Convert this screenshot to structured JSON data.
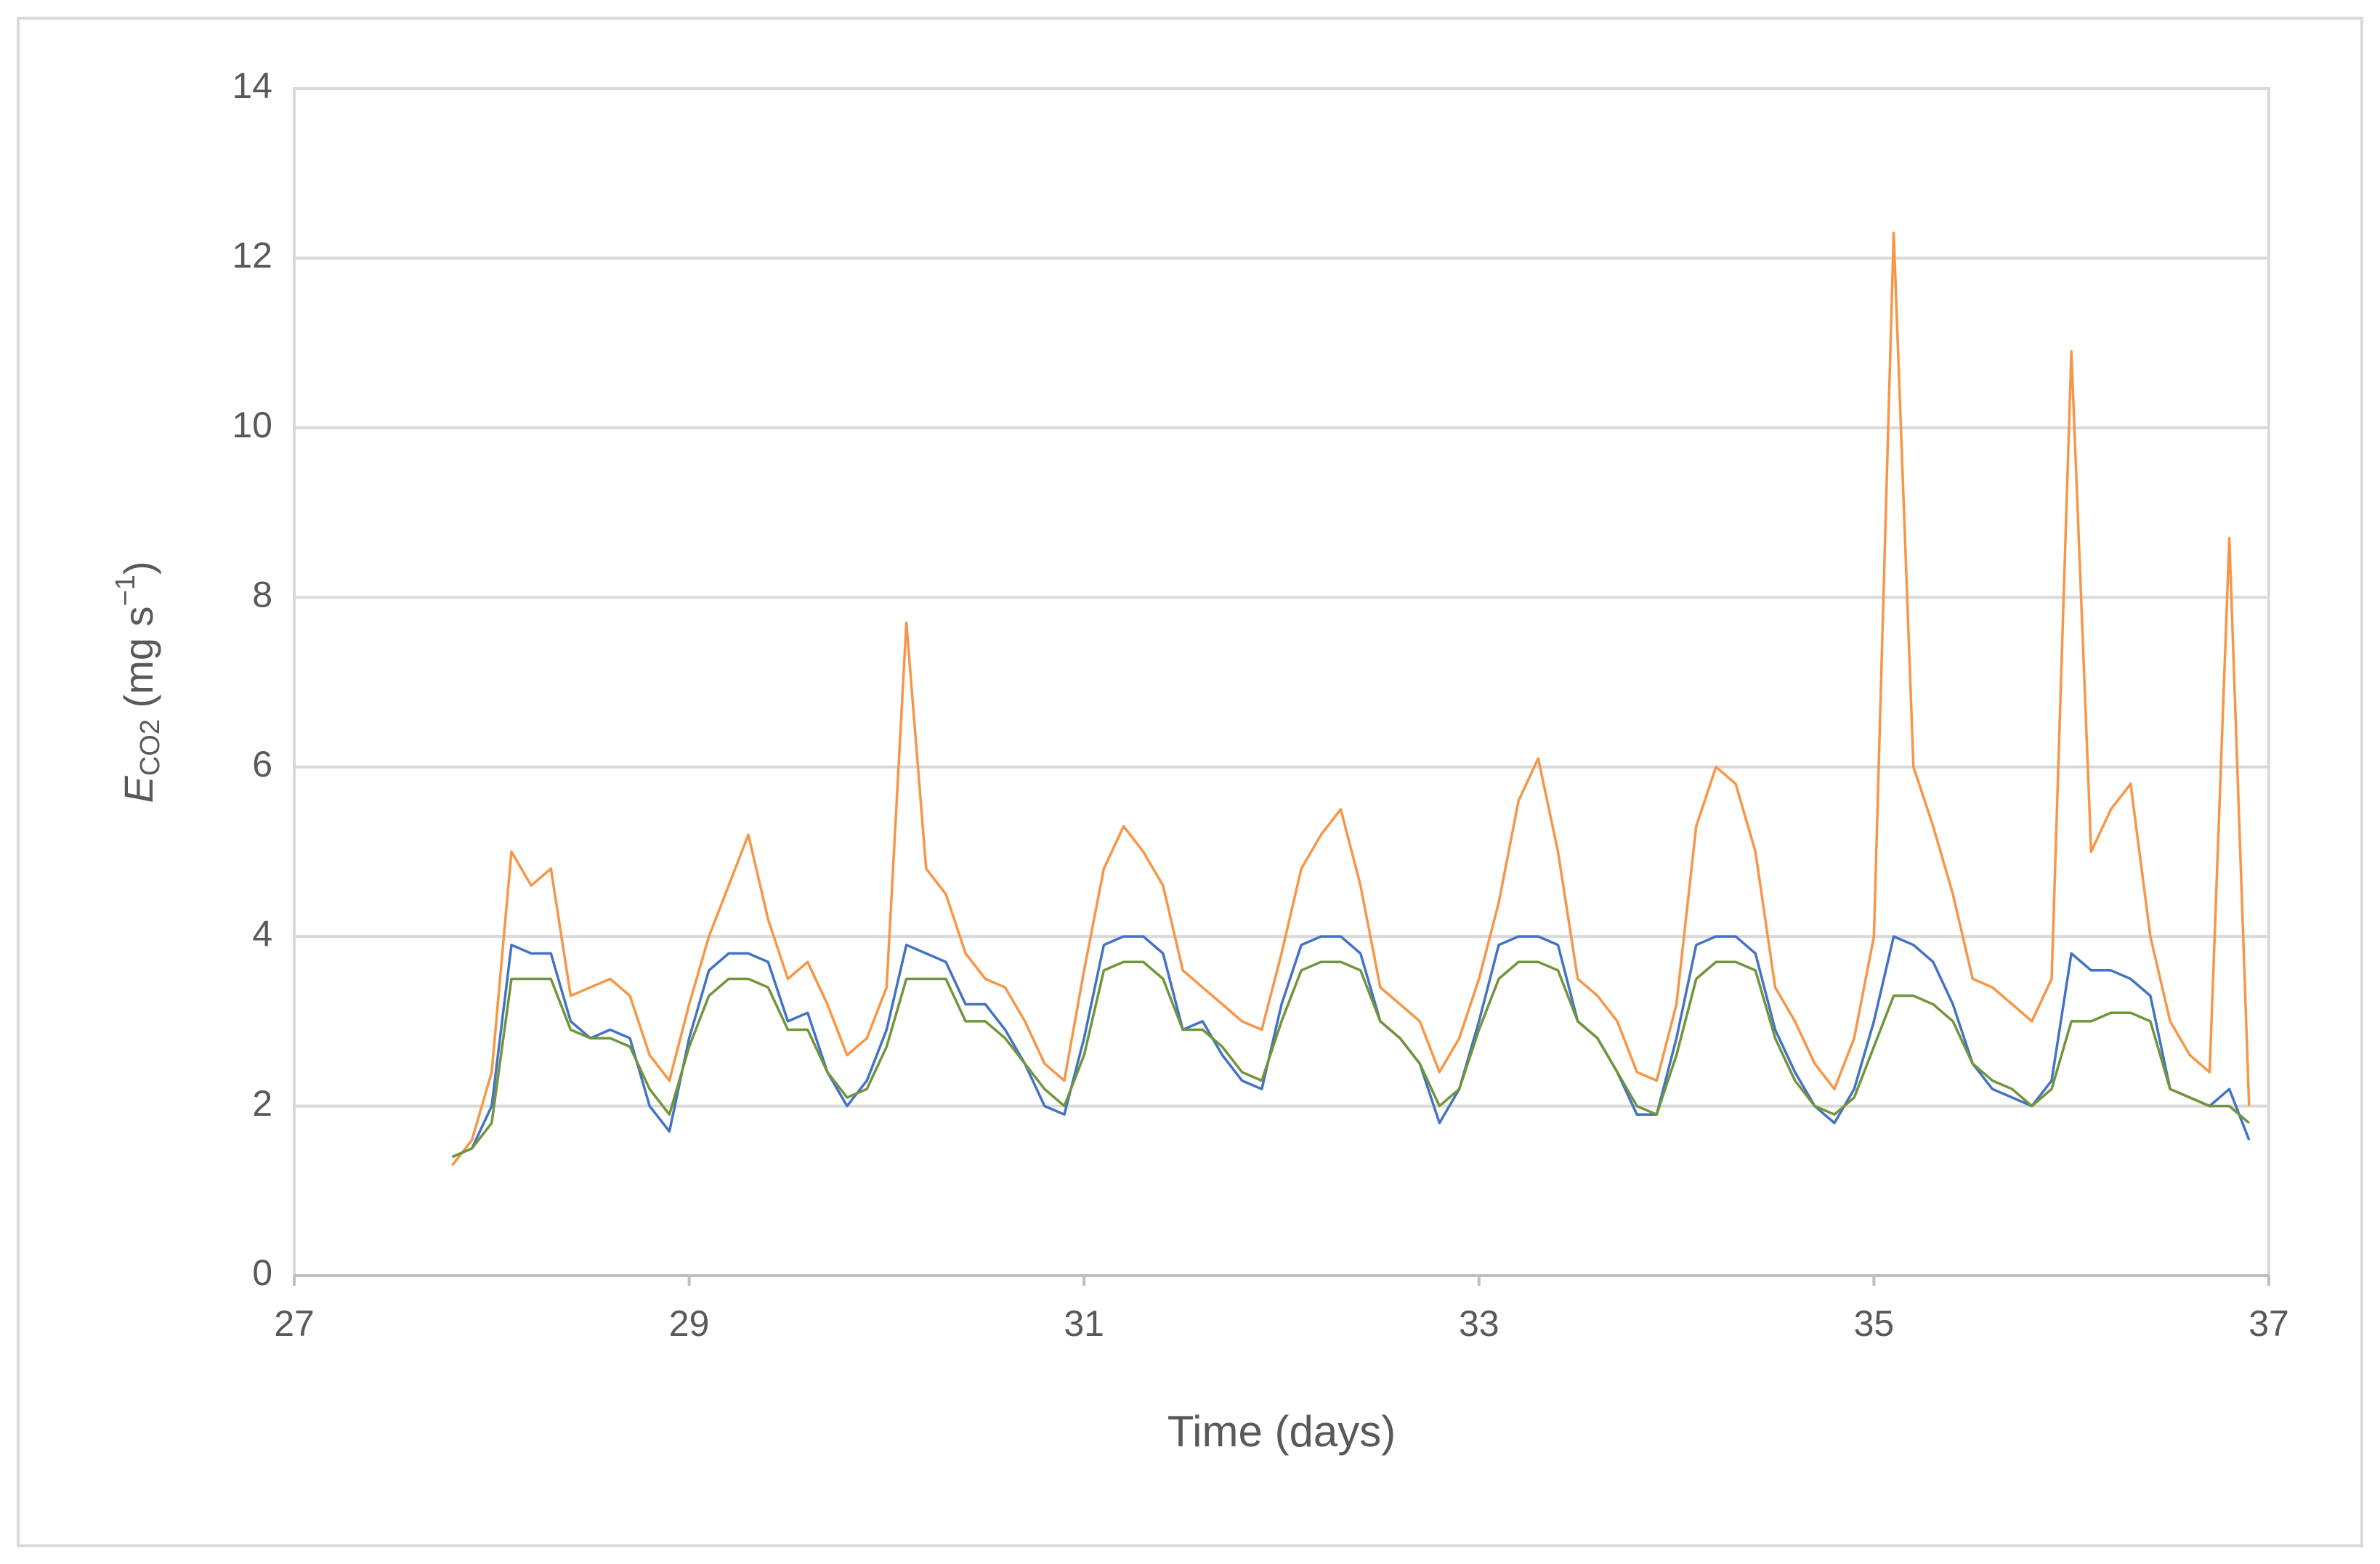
{
  "chart_data": {
    "type": "line",
    "ylabel": [
      "E",
      "CO2",
      " (mg s",
      "−1",
      ")"
    ],
    "xlabel": "Time (days)",
    "x": [
      27.8,
      27.9,
      28.0,
      28.1,
      28.2,
      28.3,
      28.4,
      28.5,
      28.6,
      28.7,
      28.8,
      28.9,
      29.0,
      29.1,
      29.2,
      29.3,
      29.4,
      29.5,
      29.6,
      29.7,
      29.8,
      29.9,
      30.0,
      30.1,
      30.2,
      30.3,
      30.4,
      30.5,
      30.6,
      30.7,
      30.8,
      30.9,
      31.0,
      31.1,
      31.2,
      31.3,
      31.4,
      31.5,
      31.6,
      31.7,
      31.8,
      31.9,
      32.0,
      32.1,
      32.2,
      32.3,
      32.4,
      32.5,
      32.6,
      32.7,
      32.8,
      32.9,
      33.0,
      33.1,
      33.2,
      33.3,
      33.4,
      33.5,
      33.6,
      33.7,
      33.8,
      33.9,
      34.0,
      34.1,
      34.2,
      34.3,
      34.4,
      34.5,
      34.6,
      34.7,
      34.8,
      34.9,
      35.0,
      35.1,
      35.2,
      35.3,
      35.4,
      35.5,
      35.6,
      35.7,
      35.8,
      35.9,
      36.0,
      36.1,
      36.2,
      36.3,
      36.4,
      36.5,
      36.6,
      36.7,
      36.8,
      36.9
    ],
    "series": [
      {
        "color": "#f79646",
        "values": [
          1.3,
          1.6,
          2.4,
          5.0,
          4.6,
          4.8,
          3.3,
          3.4,
          3.5,
          3.3,
          2.6,
          2.3,
          3.2,
          4.0,
          4.6,
          5.2,
          4.2,
          3.5,
          3.7,
          3.2,
          2.6,
          2.8,
          3.4,
          7.7,
          4.8,
          4.5,
          3.8,
          3.5,
          3.4,
          3.0,
          2.5,
          2.3,
          3.6,
          4.8,
          5.3,
          5.0,
          4.6,
          3.6,
          3.4,
          3.2,
          3.0,
          2.9,
          3.8,
          4.8,
          5.2,
          5.5,
          4.6,
          3.4,
          3.2,
          3.0,
          2.4,
          2.8,
          3.5,
          4.4,
          5.6,
          6.1,
          5.0,
          3.5,
          3.3,
          3.0,
          2.4,
          2.3,
          3.2,
          5.3,
          6.0,
          5.8,
          5.0,
          3.4,
          3.0,
          2.5,
          2.2,
          2.8,
          4.0,
          12.3,
          6.0,
          5.3,
          4.5,
          3.5,
          3.4,
          3.2,
          3.0,
          3.5,
          10.9,
          5.0,
          5.5,
          5.8,
          4.0,
          3.0,
          2.6,
          2.4,
          8.7,
          2.0
        ]
      },
      {
        "color": "#4472c4",
        "values": [
          1.4,
          1.5,
          2.0,
          3.9,
          3.8,
          3.8,
          3.0,
          2.8,
          2.9,
          2.8,
          2.0,
          1.7,
          2.8,
          3.6,
          3.8,
          3.8,
          3.7,
          3.0,
          3.1,
          2.4,
          2.0,
          2.3,
          2.9,
          3.9,
          3.8,
          3.7,
          3.2,
          3.2,
          2.9,
          2.5,
          2.0,
          1.9,
          2.8,
          3.9,
          4.0,
          4.0,
          3.8,
          2.9,
          3.0,
          2.6,
          2.3,
          2.2,
          3.2,
          3.9,
          4.0,
          4.0,
          3.8,
          3.0,
          2.8,
          2.5,
          1.8,
          2.2,
          3.0,
          3.9,
          4.0,
          4.0,
          3.9,
          3.0,
          2.8,
          2.4,
          1.9,
          1.9,
          2.8,
          3.9,
          4.0,
          4.0,
          3.8,
          2.9,
          2.4,
          2.0,
          1.8,
          2.2,
          3.0,
          4.0,
          3.9,
          3.7,
          3.2,
          2.5,
          2.2,
          2.1,
          2.0,
          2.3,
          3.8,
          3.6,
          3.6,
          3.5,
          3.3,
          2.2,
          2.1,
          2.0,
          2.2,
          1.6
        ]
      },
      {
        "color": "#70953a",
        "values": [
          1.4,
          1.5,
          1.8,
          3.5,
          3.5,
          3.5,
          2.9,
          2.8,
          2.8,
          2.7,
          2.2,
          1.9,
          2.7,
          3.3,
          3.5,
          3.5,
          3.4,
          2.9,
          2.9,
          2.4,
          2.1,
          2.2,
          2.7,
          3.5,
          3.5,
          3.5,
          3.0,
          3.0,
          2.8,
          2.5,
          2.2,
          2.0,
          2.6,
          3.6,
          3.7,
          3.7,
          3.5,
          2.9,
          2.9,
          2.7,
          2.4,
          2.3,
          3.0,
          3.6,
          3.7,
          3.7,
          3.6,
          3.0,
          2.8,
          2.5,
          2.0,
          2.2,
          2.9,
          3.5,
          3.7,
          3.7,
          3.6,
          3.0,
          2.8,
          2.4,
          2.0,
          1.9,
          2.6,
          3.5,
          3.7,
          3.7,
          3.6,
          2.8,
          2.3,
          2.0,
          1.9,
          2.1,
          2.7,
          3.3,
          3.3,
          3.2,
          3.0,
          2.5,
          2.3,
          2.2,
          2.0,
          2.2,
          3.0,
          3.0,
          3.1,
          3.1,
          3.0,
          2.2,
          2.1,
          2.0,
          2.0,
          1.8
        ]
      }
    ],
    "xlim": [
      27,
      37
    ],
    "xticks": [
      27,
      29,
      31,
      33,
      35,
      37
    ],
    "ylim": [
      0,
      14
    ],
    "yticks": [
      0,
      2,
      4,
      6,
      8,
      10,
      12,
      14
    ],
    "grid": true
  }
}
